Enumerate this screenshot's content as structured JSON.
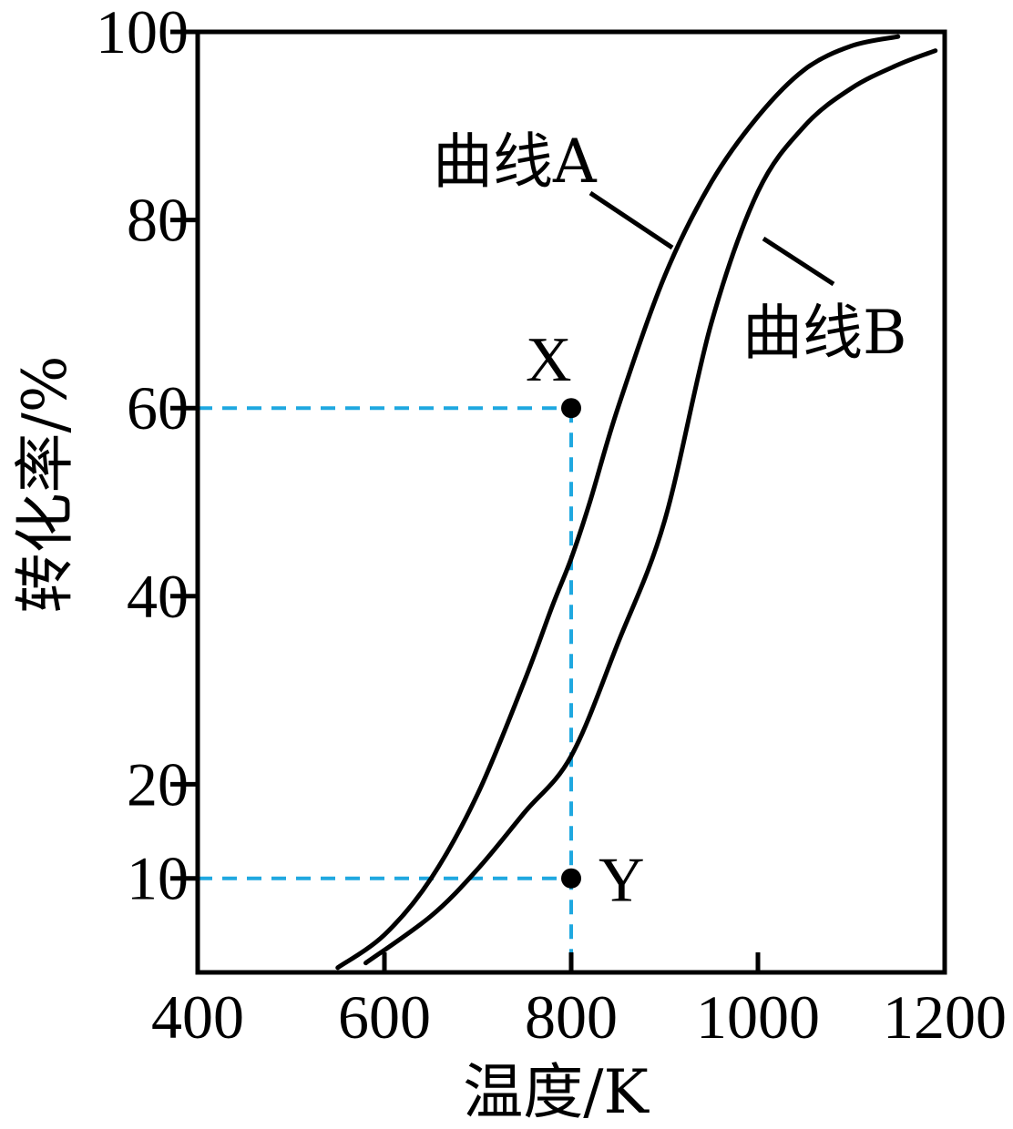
{
  "chart_data": {
    "type": "line",
    "xlabel": "温度/K",
    "ylabel": "转化率/%",
    "xlim": [
      400,
      1200
    ],
    "ylim": [
      0,
      100
    ],
    "xticks": [
      400,
      600,
      800,
      1000,
      1200
    ],
    "yticks": [
      10,
      20,
      40,
      60,
      80,
      100
    ],
    "grid": false,
    "series": [
      {
        "name": "曲线A",
        "x": [
          550,
          600,
          650,
          700,
          750,
          780,
          800,
          820,
          850,
          900,
          950,
          1000,
          1050,
          1100,
          1150
        ],
        "y": [
          0.5,
          4,
          10,
          19,
          31,
          39,
          44,
          50,
          60,
          74,
          84,
          91,
          96,
          98.5,
          99.5
        ]
      },
      {
        "name": "曲线B",
        "x": [
          580,
          650,
          700,
          750,
          800,
          850,
          900,
          950,
          1000,
          1050,
          1100,
          1150,
          1190
        ],
        "y": [
          1,
          6,
          11,
          17,
          23,
          35,
          48,
          69,
          83,
          90,
          94,
          96.5,
          98
        ]
      }
    ],
    "points": [
      {
        "label": "X",
        "x": 800,
        "y": 60
      },
      {
        "label": "Y",
        "x": 800,
        "y": 10
      }
    ],
    "colors": {
      "curve": "#000000",
      "guide": "#1fa8e0",
      "frame": "#000000"
    }
  }
}
